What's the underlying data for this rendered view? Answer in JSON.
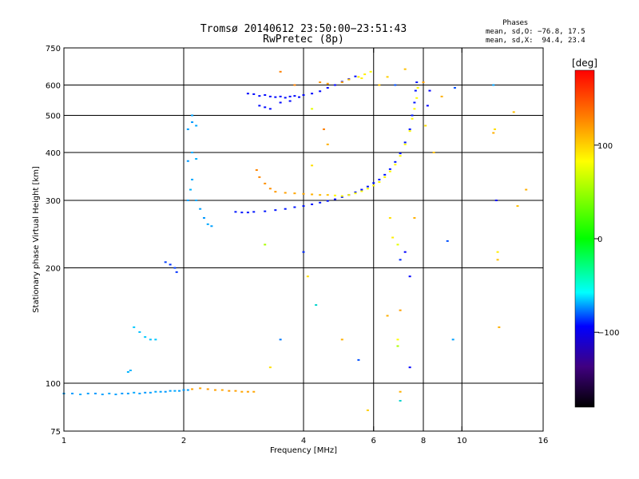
{
  "chart_data": {
    "type": "scatter",
    "title": "Tromsø 20140612 23:50:00−23:51:43",
    "subtitle": "RwPretec (8p)",
    "xlabel": "Frequency [MHz]",
    "ylabel": "Stationary phase Virtual Height [km]",
    "xscale": "log2",
    "yscale": "log",
    "xlim": [
      1,
      16
    ],
    "ylim": [
      75,
      750
    ],
    "x_ticks": [
      1,
      2,
      4,
      6,
      8,
      10,
      16
    ],
    "x_tick_labels": [
      "1",
      "2",
      "4",
      "6",
      "8",
      "10",
      "16"
    ],
    "x_gridlines": [
      2,
      4,
      6,
      8,
      10
    ],
    "y_ticks": [
      75,
      100,
      200,
      300,
      400,
      500,
      600,
      750
    ],
    "y_tick_labels": [
      "75",
      "100",
      "200",
      "300",
      "400",
      "500",
      "600",
      "750"
    ],
    "y_gridlines": [
      100,
      200,
      300,
      400,
      500,
      600
    ],
    "grid": true,
    "stats": {
      "heading": "Phases",
      "line1": "mean, sd,O: −76.8, 17.5",
      "line2": "mean, sd,X:  94.4, 23.4"
    },
    "colorbar": {
      "label": "[deg]",
      "range": [
        -180,
        180
      ],
      "ticks": [
        100,
        0,
        -100
      ],
      "tick_labels": [
        "100",
        "0",
        "−100"
      ],
      "colors": [
        "#ff0000",
        "#ff8000",
        "#ffff00",
        "#00ff00",
        "#00ffff",
        "#0000ff",
        "#400080",
        "#000000"
      ]
    },
    "series": [
      {
        "points": [
          [
            1.0,
            94,
            -60
          ],
          [
            1.05,
            94,
            -62
          ],
          [
            1.1,
            93.5,
            -58
          ],
          [
            1.15,
            94,
            -60
          ],
          [
            1.2,
            94,
            -62
          ],
          [
            1.25,
            93.5,
            -60
          ],
          [
            1.3,
            94,
            -58
          ],
          [
            1.35,
            93.5,
            -60
          ],
          [
            1.4,
            94,
            -62
          ],
          [
            1.45,
            94,
            -60
          ],
          [
            1.5,
            94.5,
            -58
          ],
          [
            1.55,
            94,
            -60
          ],
          [
            1.6,
            94.5,
            -62
          ],
          [
            1.65,
            94.5,
            -60
          ],
          [
            1.7,
            95,
            -58
          ],
          [
            1.75,
            95,
            -60
          ],
          [
            1.8,
            95,
            -62
          ],
          [
            1.85,
            95.5,
            -60
          ],
          [
            1.9,
            95.5,
            -58
          ],
          [
            1.95,
            95.5,
            -60
          ],
          [
            2.0,
            96,
            -62
          ],
          [
            2.05,
            96,
            -60
          ]
        ]
      },
      {
        "points": [
          [
            2.1,
            96.5,
            120
          ],
          [
            2.2,
            97,
            118
          ],
          [
            2.3,
            96.5,
            122
          ],
          [
            2.4,
            96,
            120
          ],
          [
            2.5,
            96,
            118
          ],
          [
            2.6,
            95.5,
            122
          ],
          [
            2.7,
            95.5,
            120
          ],
          [
            2.8,
            95,
            118
          ],
          [
            2.9,
            95,
            120
          ],
          [
            3.0,
            95,
            118
          ]
        ]
      },
      {
        "points": [
          [
            1.45,
            107,
            -55
          ],
          [
            1.47,
            108,
            -55
          ],
          [
            1.5,
            140,
            -50
          ],
          [
            1.55,
            136,
            -52
          ],
          [
            1.6,
            132,
            -50
          ],
          [
            1.65,
            130,
            -52
          ],
          [
            1.7,
            130,
            -50
          ]
        ]
      },
      {
        "points": [
          [
            1.8,
            207,
            -85
          ],
          [
            1.85,
            204,
            -88
          ],
          [
            1.9,
            200,
            -85
          ],
          [
            1.92,
            195,
            -88
          ]
        ]
      },
      {
        "points": [
          [
            2.05,
            300,
            -60
          ],
          [
            2.08,
            320,
            -55
          ],
          [
            2.1,
            340,
            -58
          ],
          [
            2.05,
            380,
            -62
          ],
          [
            2.1,
            400,
            -58
          ],
          [
            2.15,
            385,
            -55
          ],
          [
            2.05,
            460,
            -60
          ],
          [
            2.1,
            480,
            -62
          ],
          [
            2.15,
            470,
            -58
          ],
          [
            2.1,
            500,
            -60
          ],
          [
            2.15,
            300,
            -58
          ],
          [
            2.2,
            285,
            -60
          ],
          [
            2.25,
            270,
            -62
          ],
          [
            2.3,
            260,
            -58
          ],
          [
            2.35,
            257,
            -60
          ]
        ]
      },
      {
        "points": [
          [
            2.7,
            280,
            -95
          ],
          [
            2.8,
            279,
            -95
          ],
          [
            2.9,
            279,
            -95
          ],
          [
            3.0,
            280,
            -95
          ],
          [
            3.2,
            281,
            -95
          ],
          [
            3.4,
            283,
            -95
          ],
          [
            3.6,
            285,
            -95
          ],
          [
            3.8,
            288,
            -95
          ],
          [
            4.0,
            290,
            -95
          ],
          [
            4.2,
            293,
            -95
          ],
          [
            4.4,
            296,
            -95
          ],
          [
            4.6,
            299,
            -95
          ],
          [
            4.8,
            302,
            -95
          ],
          [
            5.0,
            306,
            -95
          ],
          [
            5.2,
            310,
            -95
          ],
          [
            5.4,
            315,
            -95
          ],
          [
            5.6,
            320,
            -95
          ],
          [
            5.8,
            326,
            -95
          ],
          [
            6.0,
            333,
            -95
          ],
          [
            6.2,
            340,
            -95
          ],
          [
            6.4,
            350,
            -95
          ],
          [
            6.6,
            362,
            -95
          ],
          [
            6.8,
            378,
            -95
          ],
          [
            7.0,
            398,
            -95
          ],
          [
            7.2,
            425,
            -95
          ],
          [
            7.4,
            460,
            -95
          ],
          [
            7.5,
            500,
            -95
          ],
          [
            7.6,
            540,
            -95
          ],
          [
            7.65,
            580,
            -95
          ],
          [
            7.7,
            610,
            -95
          ]
        ]
      },
      {
        "points": [
          [
            3.05,
            360,
            128
          ],
          [
            3.1,
            345,
            128
          ],
          [
            3.2,
            332,
            125
          ],
          [
            3.3,
            322,
            125
          ],
          [
            3.4,
            316,
            122
          ],
          [
            3.6,
            314,
            120
          ],
          [
            3.8,
            313,
            118
          ],
          [
            4.0,
            312,
            118
          ],
          [
            4.2,
            311,
            115
          ],
          [
            4.4,
            310,
            112
          ],
          [
            4.6,
            310,
            110
          ]
        ]
      },
      {
        "points": [
          [
            4.8,
            309,
            92
          ],
          [
            5.0,
            308,
            92
          ],
          [
            5.2,
            310,
            92
          ],
          [
            5.4,
            313,
            92
          ],
          [
            5.6,
            317,
            92
          ],
          [
            5.8,
            322,
            92
          ],
          [
            6.0,
            328,
            92
          ],
          [
            6.2,
            335,
            92
          ],
          [
            6.4,
            345,
            92
          ],
          [
            6.6,
            357,
            92
          ],
          [
            6.8,
            372,
            92
          ],
          [
            7.0,
            392,
            92
          ],
          [
            7.2,
            420,
            92
          ],
          [
            7.4,
            455,
            92
          ],
          [
            7.5,
            490,
            92
          ],
          [
            7.6,
            520,
            92
          ],
          [
            7.7,
            555,
            92
          ],
          [
            7.75,
            590,
            92
          ]
        ]
      },
      {
        "points": [
          [
            2.9,
            570,
            -98
          ],
          [
            3.0,
            568,
            -98
          ],
          [
            3.1,
            562,
            -98
          ],
          [
            3.2,
            565,
            -98
          ],
          [
            3.3,
            560,
            -98
          ],
          [
            3.4,
            558,
            -98
          ],
          [
            3.5,
            560,
            -98
          ],
          [
            3.6,
            556,
            -98
          ],
          [
            3.7,
            560,
            -98
          ],
          [
            3.8,
            562,
            -98
          ],
          [
            3.9,
            558,
            -98
          ],
          [
            4.0,
            565,
            -98
          ],
          [
            4.2,
            570,
            -98
          ],
          [
            4.4,
            578,
            -98
          ],
          [
            4.6,
            590,
            -98
          ],
          [
            4.8,
            600,
            -98
          ],
          [
            5.0,
            612,
            -98
          ],
          [
            5.2,
            622,
            -98
          ],
          [
            5.4,
            632,
            -98
          ],
          [
            3.1,
            530,
            -98
          ],
          [
            3.2,
            525,
            -98
          ],
          [
            3.3,
            520,
            -98
          ],
          [
            3.5,
            540,
            -98
          ],
          [
            3.7,
            545,
            -98
          ]
        ]
      },
      {
        "points": [
          [
            5.0,
            610,
            120
          ],
          [
            5.2,
            620,
            110
          ],
          [
            5.5,
            630,
            95
          ],
          [
            5.7,
            640,
            95
          ],
          [
            5.9,
            650,
            90
          ],
          [
            5.6,
            625,
            95
          ]
        ]
      },
      {
        "points": [
          [
            3.5,
            650,
            130
          ],
          [
            3.8,
            600,
            130
          ],
          [
            4.4,
            610,
            125
          ],
          [
            4.6,
            605,
            122
          ],
          [
            4.2,
            520,
            80
          ],
          [
            4.5,
            460,
            130
          ],
          [
            4.2,
            370,
            100
          ],
          [
            4.6,
            420,
            115
          ],
          [
            3.2,
            230,
            60
          ],
          [
            4.0,
            220,
            -90
          ],
          [
            4.1,
            190,
            100
          ],
          [
            4.3,
            160,
            -40
          ],
          [
            3.5,
            130,
            -70
          ],
          [
            3.3,
            110,
            100
          ],
          [
            5.0,
            130,
            115
          ],
          [
            5.5,
            115,
            -80
          ],
          [
            5.8,
            85,
            105
          ],
          [
            6.2,
            600,
            110
          ],
          [
            6.5,
            630,
            105
          ],
          [
            6.8,
            600,
            -80
          ],
          [
            6.6,
            270,
            100
          ],
          [
            6.7,
            240,
            95
          ],
          [
            6.9,
            230,
            80
          ],
          [
            7.0,
            210,
            -90
          ],
          [
            7.2,
            220,
            -100
          ],
          [
            7.4,
            190,
            -100
          ],
          [
            6.5,
            150,
            115
          ],
          [
            6.9,
            130,
            90
          ],
          [
            6.9,
            125,
            60
          ],
          [
            7.0,
            95,
            115
          ],
          [
            7.0,
            90,
            -40
          ],
          [
            7.4,
            110,
            -100
          ],
          [
            7.0,
            155,
            120
          ],
          [
            7.6,
            270,
            115
          ],
          [
            8.0,
            610,
            120
          ],
          [
            8.2,
            530,
            -100
          ],
          [
            8.5,
            400,
            110
          ],
          [
            8.9,
            560,
            115
          ],
          [
            9.2,
            235,
            -80
          ],
          [
            9.5,
            130,
            -60
          ],
          [
            9.6,
            590,
            -80
          ],
          [
            12.0,
            600,
            -60
          ],
          [
            12.0,
            450,
            115
          ],
          [
            12.1,
            460,
            100
          ],
          [
            12.2,
            300,
            -100
          ],
          [
            12.3,
            220,
            95
          ],
          [
            12.3,
            210,
            110
          ],
          [
            12.4,
            140,
            115
          ],
          [
            13.5,
            510,
            110
          ],
          [
            13.8,
            290,
            110
          ],
          [
            14.5,
            320,
            115
          ],
          [
            8.3,
            580,
            -100
          ],
          [
            8.1,
            470,
            100
          ],
          [
            7.2,
            660,
            110
          ]
        ]
      }
    ]
  }
}
